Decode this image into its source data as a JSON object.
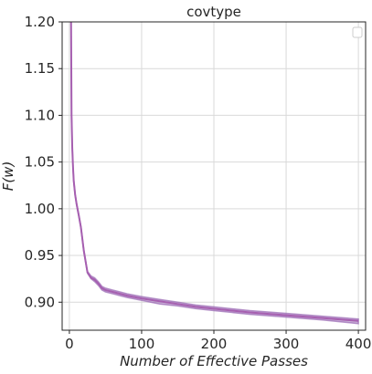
{
  "chart_data": {
    "type": "line",
    "title": "covtype",
    "xlabel": "Number of Effective Passes",
    "ylabel": "F(w)",
    "xlim": [
      -10,
      410
    ],
    "ylim": [
      0.87,
      1.2
    ],
    "xticks": [
      0,
      100,
      200,
      300,
      400
    ],
    "yticks": [
      0.9,
      0.95,
      1.0,
      1.05,
      1.1,
      1.15,
      1.2
    ],
    "xtick_labels": [
      "0",
      "100",
      "200",
      "300",
      "400"
    ],
    "ytick_labels": [
      "0.90",
      "0.95",
      "1.00",
      "1.05",
      "1.10",
      "1.15",
      "1.20"
    ],
    "grid": true,
    "legend": {
      "placement": "top-right",
      "entries": []
    },
    "series": [
      {
        "color": "#a65fb0",
        "band_color": "#9b6bb5",
        "x": [
          2,
          3,
          4,
          5,
          6,
          8,
          10,
          13,
          16,
          20,
          25,
          30,
          35,
          40,
          45,
          50,
          60,
          70,
          80,
          100,
          125,
          150,
          175,
          200,
          250,
          300,
          350,
          400
        ],
        "y": [
          1.25,
          1.1,
          1.065,
          1.045,
          1.03,
          1.015,
          1.005,
          0.993,
          0.98,
          0.955,
          0.932,
          0.926,
          0.924,
          0.92,
          0.915,
          0.913,
          0.911,
          0.909,
          0.907,
          0.904,
          0.901,
          0.898,
          0.895,
          0.893,
          0.889,
          0.886,
          0.883,
          0.88
        ],
        "band_upper": [
          1.25,
          1.1,
          1.066,
          1.046,
          1.031,
          1.016,
          1.006,
          0.994,
          0.981,
          0.956,
          0.933,
          0.928,
          0.926,
          0.922,
          0.917,
          0.915,
          0.913,
          0.911,
          0.909,
          0.906,
          0.903,
          0.9,
          0.897,
          0.895,
          0.891,
          0.888,
          0.885,
          0.882
        ],
        "band_lower": [
          1.25,
          1.1,
          1.064,
          1.044,
          1.029,
          1.014,
          1.004,
          0.992,
          0.979,
          0.954,
          0.931,
          0.925,
          0.922,
          0.918,
          0.913,
          0.911,
          0.909,
          0.907,
          0.905,
          0.902,
          0.898,
          0.896,
          0.893,
          0.891,
          0.887,
          0.884,
          0.881,
          0.877
        ]
      }
    ]
  }
}
